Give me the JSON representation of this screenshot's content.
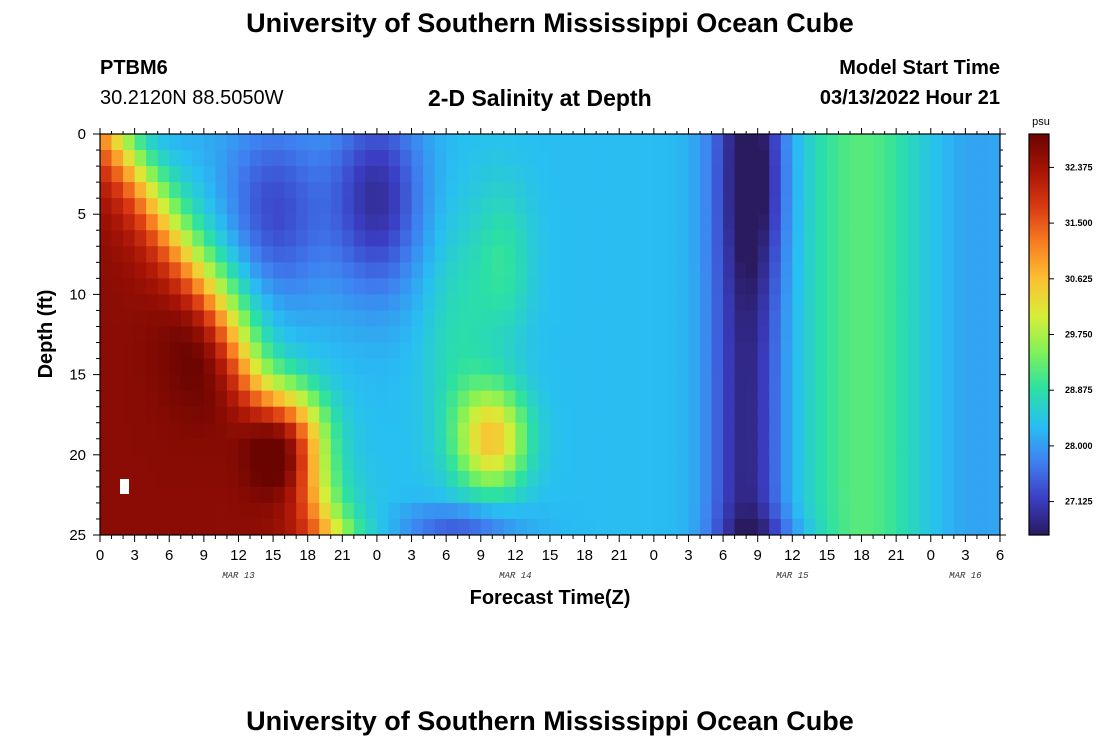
{
  "page": {
    "title": "University of Southern Mississippi Ocean Cube",
    "footer_title": "University of Southern Mississippi Ocean Cube",
    "station_id": "PTBM6",
    "station_coords": "30.2120N  88.5050W",
    "plot_title": "2-D Salinity at Depth",
    "model_start_label": "Model Start Time",
    "model_start_value": "03/13/2022 Hour 21"
  },
  "chart_data": {
    "type": "heatmap",
    "variable": "Salinity",
    "unit": "psu",
    "xlabel": "Forecast Time(Z)",
    "ylabel": "Depth (ft)",
    "x_hours_range": [
      0,
      78
    ],
    "y_depth_range": [
      0,
      25
    ],
    "y_inverted": true,
    "x_ticks": [
      "0",
      "3",
      "6",
      "9",
      "12",
      "15",
      "18",
      "21",
      "0",
      "3",
      "6",
      "9",
      "12",
      "15",
      "18",
      "21",
      "0",
      "3",
      "6",
      "9",
      "12",
      "15",
      "18",
      "21",
      "0",
      "3",
      "6"
    ],
    "y_ticks": [
      0,
      5,
      10,
      15,
      20,
      25
    ],
    "date_labels": [
      "MAR 13",
      "MAR 14",
      "MAR 15",
      "MAR 16"
    ],
    "colorbar": {
      "ticks": [
        27.125,
        28.0,
        28.875,
        29.75,
        30.625,
        31.5,
        32.375
      ],
      "tick_labels": [
        "27.125",
        "28.000",
        "28.875",
        "29.750",
        "30.625",
        "31.500",
        "32.375"
      ],
      "range": [
        26.6,
        32.9
      ],
      "colors": [
        "#2a1a5e",
        "#3b3ec4",
        "#3f7ff0",
        "#28bff2",
        "#2be0a4",
        "#7ef258",
        "#d6ee38",
        "#fbc233",
        "#f87f22",
        "#d93a12",
        "#a71406",
        "#6a0401"
      ]
    },
    "grid": false,
    "legend": "colorbar-right"
  }
}
